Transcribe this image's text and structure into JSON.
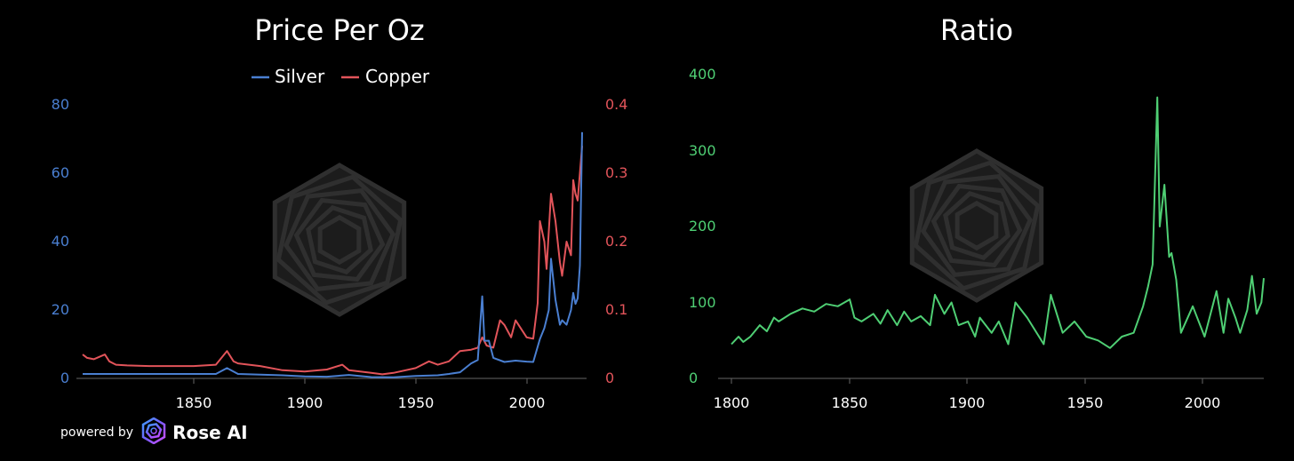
{
  "colors": {
    "silver": "#4a7fd1",
    "copper": "#e2545a",
    "ratio": "#4fcf74",
    "axis": "#666666",
    "watermark": "#2a2a2a"
  },
  "footer": {
    "powered_by": "powered by",
    "brand": "Rose AI",
    "logo_icon": "rose-ai-logo-icon"
  },
  "chart_data": [
    {
      "type": "line",
      "title": "Price Per Oz",
      "legend": [
        "Silver",
        "Copper"
      ],
      "legend_position": "top-center",
      "grid": false,
      "xlim": [
        1800,
        2025
      ],
      "x_ticks": [
        "1850",
        "1900",
        "1950",
        "2000"
      ],
      "y_left_ticks": [
        "0",
        "20",
        "40",
        "60",
        "80"
      ],
      "y_right_ticks": [
        "0",
        "0.1",
        "0.2",
        "0.3",
        "0.4"
      ],
      "ylim_left": [
        0,
        80
      ],
      "ylim_right": [
        0,
        0.4
      ],
      "series": [
        {
          "name": "Silver",
          "axis": "left",
          "x": [
            1800,
            1810,
            1820,
            1830,
            1840,
            1850,
            1860,
            1865,
            1870,
            1880,
            1890,
            1900,
            1910,
            1920,
            1930,
            1940,
            1950,
            1960,
            1965,
            1970,
            1975,
            1978,
            1980,
            1981,
            1983,
            1985,
            1990,
            1995,
            2000,
            2003,
            2006,
            2008,
            2010,
            2011,
            2013,
            2015,
            2016,
            2018,
            2020,
            2021,
            2022,
            2023,
            2024,
            2025
          ],
          "values": [
            1.3,
            1.3,
            1.3,
            1.3,
            1.3,
            1.3,
            1.3,
            3.0,
            1.3,
            1.1,
            0.9,
            0.6,
            0.5,
            1.0,
            0.4,
            0.35,
            0.7,
            0.9,
            1.3,
            1.8,
            4.4,
            5.4,
            24,
            11,
            11,
            6,
            4.8,
            5.2,
            4.9,
            4.8,
            11.5,
            14.7,
            20,
            35,
            23,
            15.7,
            17,
            15.7,
            20,
            25,
            21.8,
            23.4,
            33,
            72
          ]
        },
        {
          "name": "Copper",
          "axis": "right",
          "x": [
            1800,
            1802,
            1805,
            1810,
            1812,
            1815,
            1820,
            1830,
            1840,
            1850,
            1860,
            1865,
            1868,
            1870,
            1875,
            1880,
            1890,
            1900,
            1910,
            1917,
            1920,
            1930,
            1935,
            1940,
            1950,
            1956,
            1960,
            1965,
            1970,
            1975,
            1978,
            1980,
            1982,
            1985,
            1988,
            1990,
            1993,
            1995,
            2000,
            2003,
            2005,
            2006,
            2008,
            2009,
            2011,
            2013,
            2015,
            2016,
            2018,
            2020,
            2021,
            2022,
            2023,
            2024,
            2025
          ],
          "values": [
            0.035,
            0.03,
            0.028,
            0.035,
            0.025,
            0.02,
            0.019,
            0.018,
            0.018,
            0.018,
            0.02,
            0.04,
            0.025,
            0.022,
            0.02,
            0.018,
            0.012,
            0.01,
            0.013,
            0.02,
            0.012,
            0.008,
            0.006,
            0.008,
            0.015,
            0.025,
            0.02,
            0.025,
            0.04,
            0.042,
            0.045,
            0.06,
            0.048,
            0.045,
            0.085,
            0.078,
            0.06,
            0.085,
            0.06,
            0.058,
            0.11,
            0.23,
            0.2,
            0.16,
            0.27,
            0.23,
            0.17,
            0.15,
            0.2,
            0.18,
            0.29,
            0.27,
            0.26,
            0.3,
            0.34
          ]
        }
      ]
    },
    {
      "type": "line",
      "title": "Ratio",
      "grid": false,
      "xlim": [
        1800,
        2025
      ],
      "ylim": [
        0,
        400
      ],
      "x_ticks": [
        "1800",
        "1850",
        "1900",
        "1950",
        "2000"
      ],
      "y_ticks": [
        "0",
        "100",
        "200",
        "300",
        "400"
      ],
      "series": [
        {
          "name": "Ratio",
          "x": [
            1800,
            1803,
            1805,
            1808,
            1812,
            1815,
            1818,
            1820,
            1825,
            1830,
            1835,
            1840,
            1845,
            1850,
            1852,
            1855,
            1860,
            1863,
            1866,
            1870,
            1873,
            1876,
            1880,
            1884,
            1886,
            1890,
            1893,
            1896,
            1900,
            1903,
            1905,
            1910,
            1913,
            1917,
            1920,
            1925,
            1932,
            1935,
            1940,
            1945,
            1950,
            1955,
            1960,
            1965,
            1970,
            1974,
            1976,
            1978,
            1980,
            1981,
            1983,
            1985,
            1986,
            1988,
            1990,
            1995,
            2000,
            2005,
            2008,
            2010,
            2013,
            2015,
            2018,
            2020,
            2022,
            2024,
            2025
          ],
          "values": [
            45,
            55,
            48,
            55,
            70,
            62,
            80,
            75,
            85,
            92,
            88,
            98,
            95,
            104,
            80,
            75,
            85,
            72,
            90,
            70,
            88,
            75,
            82,
            70,
            110,
            85,
            100,
            70,
            75,
            55,
            80,
            60,
            75,
            45,
            100,
            80,
            45,
            110,
            60,
            75,
            55,
            50,
            40,
            55,
            60,
            95,
            120,
            150,
            370,
            200,
            255,
            160,
            165,
            130,
            60,
            95,
            55,
            115,
            60,
            105,
            80,
            60,
            90,
            135,
            85,
            100,
            132
          ]
        }
      ]
    }
  ]
}
